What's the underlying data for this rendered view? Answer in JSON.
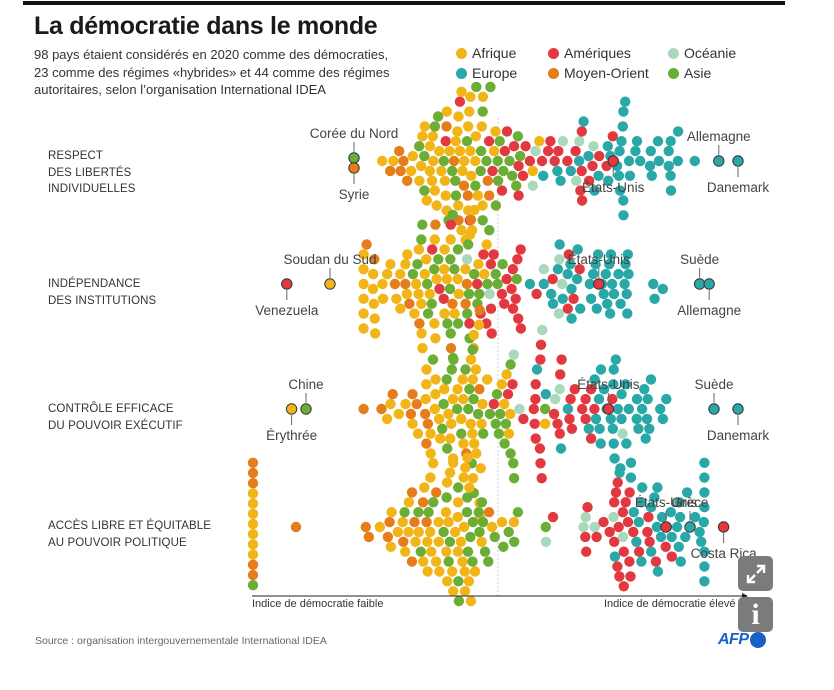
{
  "header": {
    "title": "La démocratie dans le monde",
    "subtitle_lines": [
      "98 pays étaient considérés en 2020 comme des démocraties,",
      "23 comme des régimes «hybrides» et 44 comme des régimes",
      "autoritaires, selon l’organisation International IDEA"
    ]
  },
  "legend": [
    {
      "label": "Afrique",
      "color": "#f2b517"
    },
    {
      "label": "Amériques",
      "color": "#e2383f"
    },
    {
      "label": "Océanie",
      "color": "#a9d9bd"
    },
    {
      "label": "Europe",
      "color": "#2aa8a8"
    },
    {
      "label": "Moyen-Orient",
      "color": "#e57d1c"
    },
    {
      "label": "Asie",
      "color": "#6aae35"
    }
  ],
  "chart_data": {
    "type": "scatter",
    "subtype": "beeswarm",
    "title": "La démocratie dans le monde",
    "xlabel_left": "Indice de démocratie faible",
    "xlabel_right": "Indice de démocratie élevé",
    "x_scale": "relative democracy index, 0 (low) to 1 (high); dotted reference line at about 0.5",
    "region_counts_approx": {
      "Afrique": 50,
      "Amériques": 30,
      "Europe": 40,
      "Asie": 30,
      "Moyen-Orient": 12,
      "Océanie": 6
    },
    "region_centers": {
      "rows": [
        "Respect des libertés individuelles",
        "Indépendance des institutions",
        "Contrôle efficace du pouvoir exécutif",
        "Accès libre et équitable au pouvoir politique"
      ],
      "Afrique": [
        0.4,
        0.34,
        0.42,
        0.4
      ],
      "Amériques": [
        0.58,
        0.52,
        0.6,
        0.75
      ],
      "Europe": [
        0.76,
        0.7,
        0.74,
        0.85
      ],
      "Asie": [
        0.45,
        0.4,
        0.45,
        0.45
      ],
      "Moyen-Orient": [
        0.38,
        0.35,
        0.35,
        0.3
      ],
      "Océanie": [
        0.62,
        0.58,
        0.62,
        0.72
      ]
    },
    "rows": [
      {
        "label_lines": [
          "RESPECT",
          "DES LIBERTÉS",
          "INDIVIDUELLES"
        ],
        "annotations": [
          {
            "name": "Corée du Nord",
            "region": "Asie",
            "x": 0.2,
            "position": "above"
          },
          {
            "name": "Syrie",
            "region": "Moyen-Orient",
            "x": 0.2,
            "position": "below"
          },
          {
            "name": "États-Unis",
            "region": "Amériques",
            "x": 0.74,
            "position": "below"
          },
          {
            "name": "Allemagne",
            "region": "Europe",
            "x": 0.96,
            "position": "above"
          },
          {
            "name": "Danemark",
            "region": "Europe",
            "x": 1.0,
            "position": "below"
          }
        ]
      },
      {
        "label_lines": [
          "INDÉPENDANCE",
          "DES INSTITUTIONS"
        ],
        "annotations": [
          {
            "name": "Venezuela",
            "region": "Amériques",
            "x": 0.06,
            "position": "below"
          },
          {
            "name": "Soudan du Sud",
            "region": "Afrique",
            "x": 0.15,
            "position": "above"
          },
          {
            "name": "États-Unis",
            "region": "Amériques",
            "x": 0.71,
            "position": "above"
          },
          {
            "name": "Suède",
            "region": "Europe",
            "x": 0.92,
            "position": "above"
          },
          {
            "name": "Allemagne",
            "region": "Europe",
            "x": 0.94,
            "position": "below"
          }
        ]
      },
      {
        "label_lines": [
          "CONTRÔLE EFFICACE",
          "DU POUVOIR EXÉCUTIF"
        ],
        "annotations": [
          {
            "name": "Érythrée",
            "region": "Afrique",
            "x": 0.07,
            "position": "below"
          },
          {
            "name": "Chine",
            "region": "Asie",
            "x": 0.1,
            "position": "above"
          },
          {
            "name": "États-Unis",
            "region": "Amériques",
            "x": 0.73,
            "position": "above"
          },
          {
            "name": "Suède",
            "region": "Europe",
            "x": 0.95,
            "position": "above"
          },
          {
            "name": "Danemark",
            "region": "Europe",
            "x": 1.0,
            "position": "below"
          }
        ]
      },
      {
        "label_lines": [
          "ACCÈS LIBRE ET ÉQUITABLE",
          "AU POUVOIR POLITIQUE"
        ],
        "annotations": [
          {
            "name": "États-Unis",
            "region": "Amériques",
            "x": 0.85,
            "position": "above"
          },
          {
            "name": "Grèce",
            "region": "Europe",
            "x": 0.9,
            "position": "above"
          },
          {
            "name": "Costa Rica",
            "region": "Amériques",
            "x": 0.97,
            "position": "below"
          }
        ],
        "zero_score_column": [
          "Moyen-Orient",
          "Moyen-Orient",
          "Moyen-Orient",
          "Afrique",
          "Afrique",
          "Afrique",
          "Afrique",
          "Afrique",
          "Afrique",
          "Afrique",
          "Moyen-Orient",
          "Moyen-Orient",
          "Asie"
        ]
      }
    ]
  },
  "footer": {
    "source": "Source : organisation intergouvernementale International IDEA",
    "brand": "AFP"
  },
  "controls": {
    "expand_icon": "⤢",
    "info_icon": "i"
  }
}
